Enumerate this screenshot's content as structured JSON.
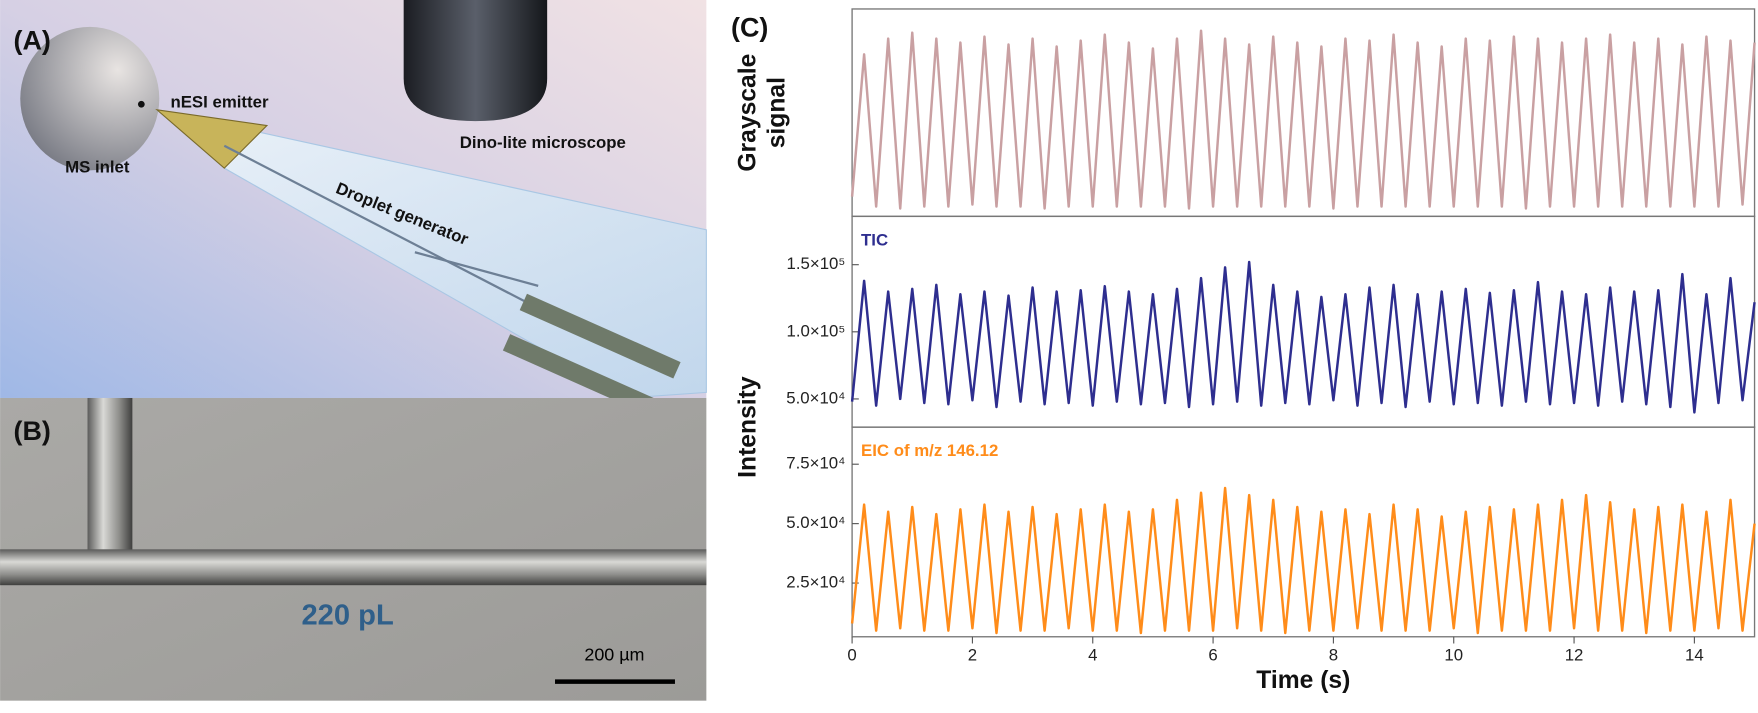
{
  "panel_labels": [
    "(A)",
    "(B)",
    "(C)"
  ],
  "illustration_labels": [
    "MS inlet",
    "nESI emitter",
    "Dino-lite microscope",
    "Droplet generator"
  ],
  "micrograph": {
    "volume": "220 pL",
    "scale_bar": "200 µm"
  },
  "chart_data": [
    {
      "type": "line",
      "ylabel": [
        "Grayscale",
        "signal"
      ],
      "xlim": [
        0,
        15
      ],
      "ylim": [
        0,
        1.05
      ],
      "x": [
        0,
        0.2,
        0.4,
        0.6,
        0.8,
        1,
        1.2,
        1.4,
        1.6,
        1.8,
        2,
        2.2,
        2.4,
        2.6,
        2.8,
        3,
        3.2,
        3.4,
        3.6,
        3.8,
        4,
        4.2,
        4.4,
        4.6,
        4.8,
        5,
        5.2,
        5.4,
        5.6,
        5.8,
        6,
        6.2,
        6.4,
        6.6,
        6.8,
        7,
        7.2,
        7.4,
        7.6,
        7.8,
        8,
        8.2,
        8.4,
        8.6,
        8.8,
        9,
        9.2,
        9.4,
        9.6,
        9.8,
        10,
        10.2,
        10.4,
        10.6,
        10.8,
        11,
        11.2,
        11.4,
        11.6,
        11.8,
        12,
        12.2,
        12.4,
        12.6,
        12.8,
        13,
        13.2,
        13.4,
        13.6,
        13.8,
        14,
        14.2,
        14.4,
        14.6,
        14.8,
        15
      ],
      "series": [
        {
          "color": "#c9a0a2",
          "values": [
            0.1,
            0.82,
            0.05,
            0.9,
            0.04,
            0.93,
            0.05,
            0.9,
            0.05,
            0.88,
            0.06,
            0.91,
            0.05,
            0.87,
            0.05,
            0.9,
            0.04,
            0.86,
            0.05,
            0.89,
            0.05,
            0.92,
            0.05,
            0.88,
            0.05,
            0.85,
            0.05,
            0.9,
            0.04,
            0.94,
            0.05,
            0.9,
            0.05,
            0.87,
            0.05,
            0.91,
            0.05,
            0.88,
            0.05,
            0.86,
            0.04,
            0.9,
            0.05,
            0.89,
            0.05,
            0.92,
            0.05,
            0.88,
            0.05,
            0.86,
            0.05,
            0.9,
            0.05,
            0.89,
            0.05,
            0.91,
            0.04,
            0.9,
            0.05,
            0.88,
            0.05,
            0.9,
            0.05,
            0.92,
            0.05,
            0.88,
            0.05,
            0.9,
            0.05,
            0.87,
            0.05,
            0.91,
            0.05,
            0.89,
            0.06,
            0.88
          ]
        }
      ]
    },
    {
      "type": "line",
      "ylabel": "Intensity",
      "xlim": [
        0,
        15
      ],
      "ylim": [
        29000,
        186000
      ],
      "yticks": [
        {
          "value": 50000,
          "label": "5.0×10⁴"
        },
        {
          "value": 100000,
          "label": "1.0×10⁵"
        },
        {
          "value": 150000,
          "label": "1.5×10⁵"
        }
      ],
      "x": [
        0,
        0.2,
        0.4,
        0.6,
        0.8,
        1,
        1.2,
        1.4,
        1.6,
        1.8,
        2,
        2.2,
        2.4,
        2.6,
        2.8,
        3,
        3.2,
        3.4,
        3.6,
        3.8,
        4,
        4.2,
        4.4,
        4.6,
        4.8,
        5,
        5.2,
        5.4,
        5.6,
        5.8,
        6,
        6.2,
        6.4,
        6.6,
        6.8,
        7,
        7.2,
        7.4,
        7.6,
        7.8,
        8,
        8.2,
        8.4,
        8.6,
        8.8,
        9,
        9.2,
        9.4,
        9.6,
        9.8,
        10,
        10.2,
        10.4,
        10.6,
        10.8,
        11,
        11.2,
        11.4,
        11.6,
        11.8,
        12,
        12.2,
        12.4,
        12.6,
        12.8,
        13,
        13.2,
        13.4,
        13.6,
        13.8,
        14,
        14.2,
        14.4,
        14.6,
        14.8,
        15
      ],
      "series": [
        {
          "name": "TIC",
          "color": "#2e2e8f",
          "values": [
            48000,
            138000,
            45000,
            130000,
            50000,
            132000,
            47000,
            135000,
            46000,
            128000,
            49000,
            130000,
            44000,
            127000,
            48000,
            133000,
            46000,
            130000,
            47000,
            131000,
            45000,
            134000,
            48000,
            130000,
            46000,
            128000,
            47000,
            132000,
            44000,
            140000,
            46000,
            148000,
            48000,
            152000,
            45000,
            135000,
            47000,
            130000,
            46000,
            126000,
            49000,
            128000,
            45000,
            133000,
            47000,
            135000,
            44000,
            128000,
            48000,
            130000,
            46000,
            132000,
            47000,
            129000,
            45000,
            131000,
            48000,
            137000,
            46000,
            130000,
            47000,
            128000,
            45000,
            133000,
            48000,
            130000,
            46000,
            131000,
            44000,
            143000,
            40000,
            128000,
            47000,
            140000,
            49000,
            122000
          ]
        }
      ]
    },
    {
      "type": "line",
      "xlabel": "Time (s)",
      "xlim": [
        0,
        15
      ],
      "xticks": [
        0,
        2,
        4,
        6,
        8,
        10,
        12,
        14
      ],
      "ylim": [
        2400,
        90600
      ],
      "yticks": [
        {
          "value": 25000,
          "label": "2.5×10⁴"
        },
        {
          "value": 50000,
          "label": "5.0×10⁴"
        },
        {
          "value": 75000,
          "label": "7.5×10⁴"
        }
      ],
      "x": [
        0,
        0.2,
        0.4,
        0.6,
        0.8,
        1,
        1.2,
        1.4,
        1.6,
        1.8,
        2,
        2.2,
        2.4,
        2.6,
        2.8,
        3,
        3.2,
        3.4,
        3.6,
        3.8,
        4,
        4.2,
        4.4,
        4.6,
        4.8,
        5,
        5.2,
        5.4,
        5.6,
        5.8,
        6,
        6.2,
        6.4,
        6.6,
        6.8,
        7,
        7.2,
        7.4,
        7.6,
        7.8,
        8,
        8.2,
        8.4,
        8.6,
        8.8,
        9,
        9.2,
        9.4,
        9.6,
        9.8,
        10,
        10.2,
        10.4,
        10.6,
        10.8,
        11,
        11.2,
        11.4,
        11.6,
        11.8,
        12,
        12.2,
        12.4,
        12.6,
        12.8,
        13,
        13.2,
        13.4,
        13.6,
        13.8,
        14,
        14.2,
        14.4,
        14.6,
        14.8,
        15
      ],
      "series": [
        {
          "name": "EIC of m/z 146.12",
          "color": "#ff8c1a",
          "values": [
            8000,
            58000,
            5000,
            55000,
            6000,
            57000,
            5000,
            54000,
            5000,
            56000,
            6000,
            58000,
            4000,
            55000,
            5000,
            57000,
            5000,
            54000,
            6000,
            56000,
            5000,
            58000,
            5000,
            55000,
            4000,
            56000,
            5000,
            60000,
            5000,
            63000,
            5000,
            65000,
            6000,
            62000,
            5000,
            60000,
            4000,
            57000,
            5000,
            55000,
            5000,
            56000,
            6000,
            54000,
            5000,
            58000,
            5000,
            56000,
            5000,
            53000,
            6000,
            55000,
            4000,
            57000,
            5000,
            56000,
            5000,
            58000,
            5000,
            60000,
            6000,
            62000,
            5000,
            59000,
            5000,
            56000,
            4000,
            57000,
            5000,
            58000,
            5000,
            55000,
            6000,
            60000,
            5000,
            50000
          ]
        }
      ]
    }
  ]
}
